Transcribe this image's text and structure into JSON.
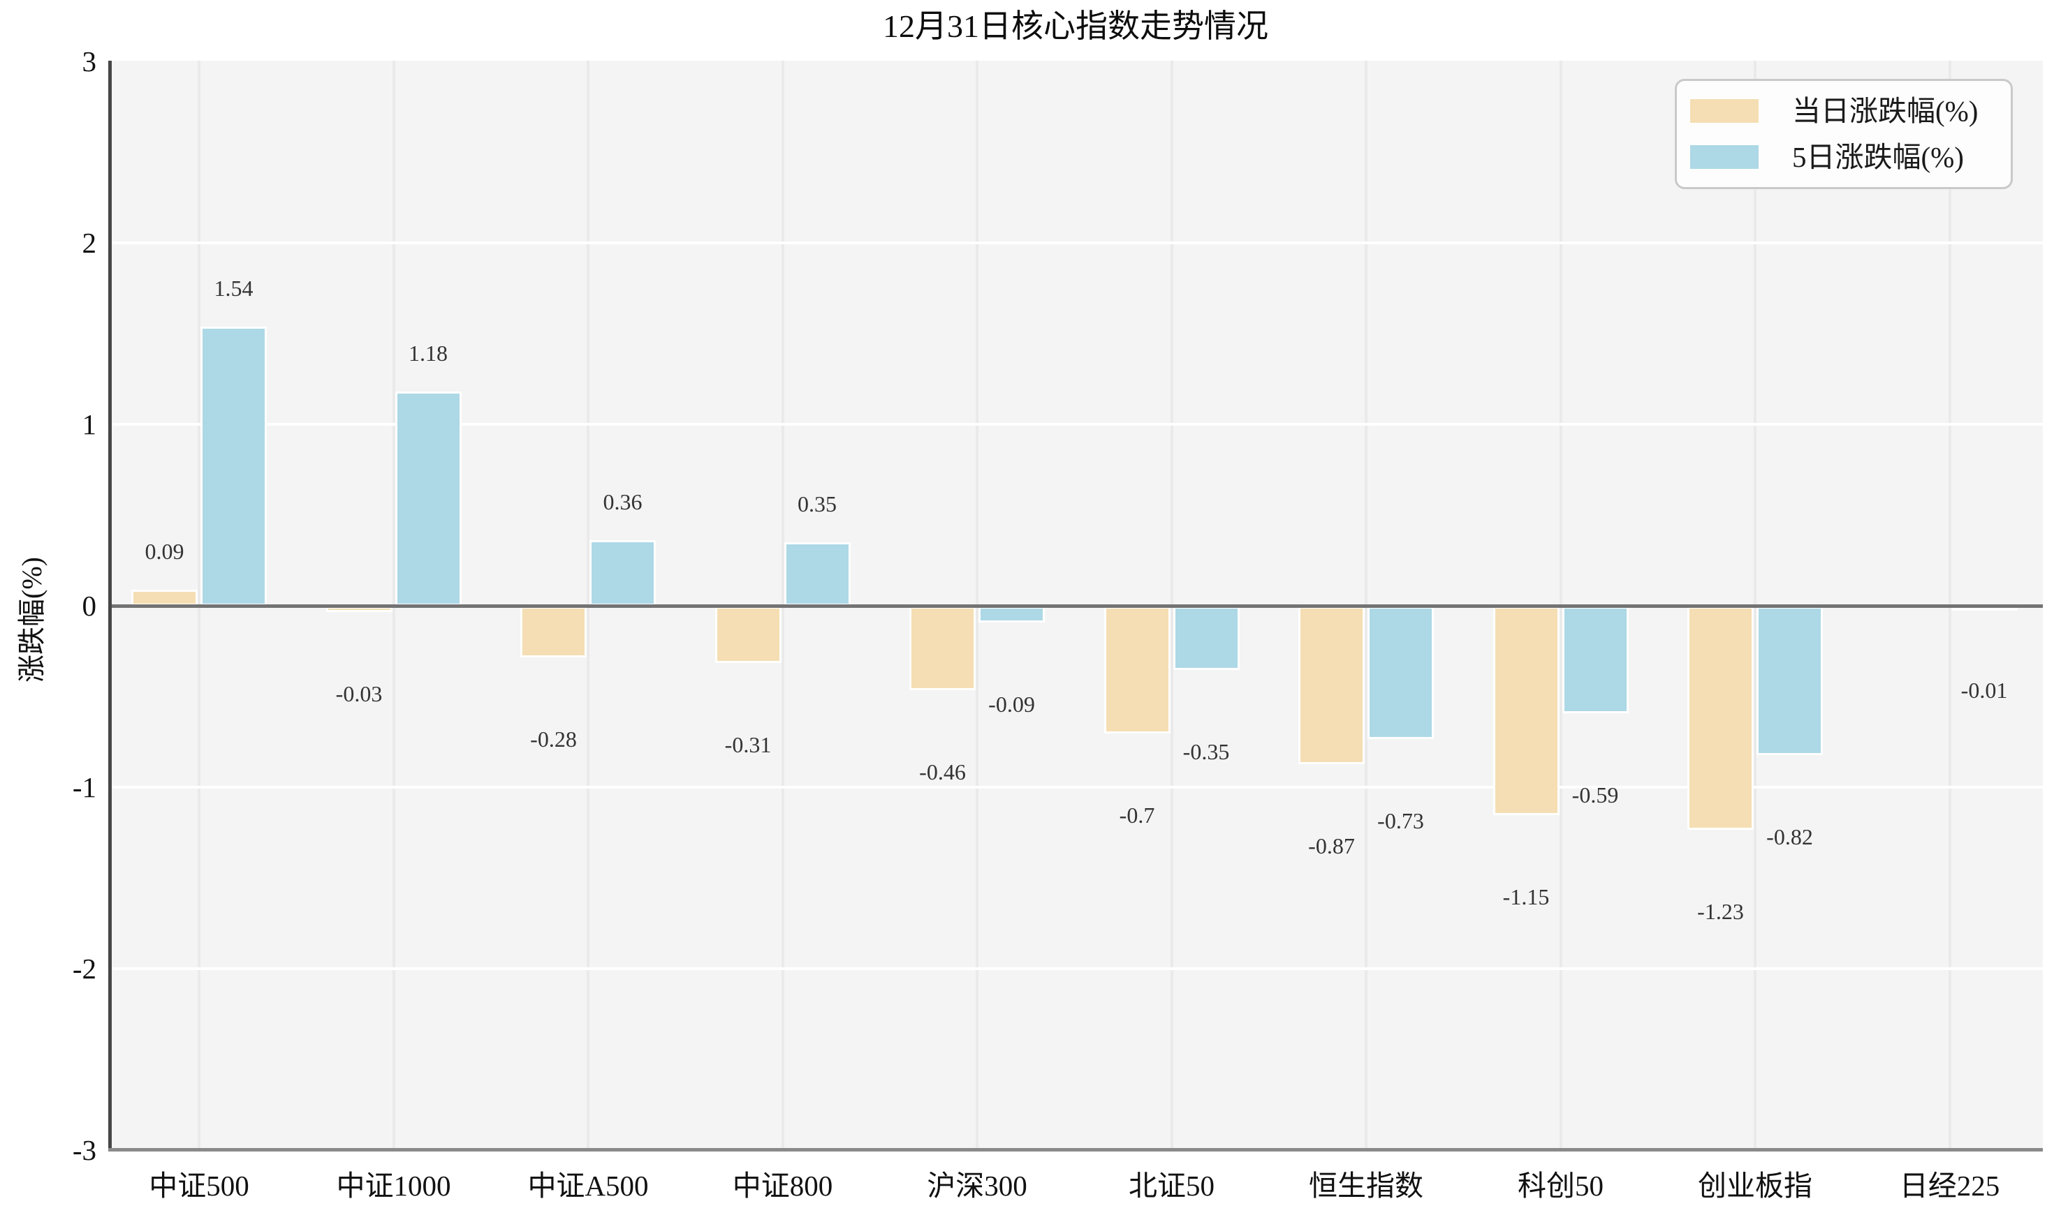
{
  "title": "12月31日核心指数走势情况",
  "y_axis": {
    "label": "涨跌幅(%)",
    "ticks": [
      "3",
      "2",
      "1",
      "0",
      "-1",
      "-2",
      "-3"
    ],
    "tick_values": [
      3,
      2,
      1,
      0,
      -1,
      -2,
      -3
    ]
  },
  "legend": {
    "items": [
      {
        "label": "当日涨跌幅(%)",
        "color": "#F5DEB3"
      },
      {
        "label": "5日涨跌幅(%)",
        "color": "#ADD8E6"
      }
    ]
  },
  "chart_data": {
    "type": "bar",
    "title": "12月31日核心指数走势情况",
    "xlabel": "",
    "ylabel": "涨跌幅(%)",
    "ylim": [
      -3,
      3
    ],
    "grid": true,
    "legend_position": "upper right",
    "categories": [
      "中证500",
      "中证1000",
      "中证A500",
      "中证800",
      "沪深300",
      "北证50",
      "恒生指数",
      "科创50",
      "创业板指",
      "日经225"
    ],
    "series": [
      {
        "name": "当日涨跌幅(%)",
        "color": "#F5DEB3",
        "values": [
          0.09,
          -0.03,
          -0.28,
          -0.31,
          -0.46,
          -0.7,
          -0.87,
          -1.15,
          -1.23,
          null
        ],
        "labels": [
          "0.09",
          "-0.03",
          "-0.28",
          "-0.31",
          "-0.46",
          "-0.7",
          "-0.87",
          "-1.15",
          "-1.23",
          null
        ]
      },
      {
        "name": "5日涨跌幅(%)",
        "color": "#ADD8E6",
        "values": [
          1.54,
          1.18,
          0.36,
          0.35,
          -0.09,
          -0.35,
          -0.73,
          -0.59,
          -0.82,
          -0.01
        ],
        "labels": [
          "1.54",
          "1.18",
          "0.36",
          "0.35",
          "-0.09",
          "-0.35",
          "-0.73",
          "-0.59",
          "-0.82",
          "-0.01"
        ]
      }
    ]
  }
}
